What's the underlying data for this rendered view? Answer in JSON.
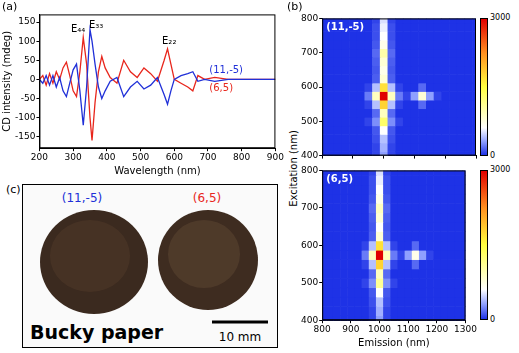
{
  "chart_data": [
    {
      "type": "line",
      "x_label": "Wavelength (nm)",
      "y_label": "CD intensity (mdeg)",
      "x": [
        200,
        210,
        220,
        230,
        240,
        250,
        260,
        270,
        280,
        290,
        300,
        310,
        320,
        330,
        340,
        350,
        356,
        365,
        375,
        385,
        395,
        410,
        430,
        450,
        470,
        490,
        510,
        530,
        550,
        570,
        580,
        590,
        600,
        620,
        640,
        655,
        670,
        690,
        720,
        760,
        800,
        850,
        900
      ],
      "series": [
        {
          "name": "(11,-5)",
          "color": "#2030d8",
          "values": [
            0,
            -10,
            10,
            -15,
            10,
            -20,
            5,
            -30,
            -45,
            -10,
            25,
            40,
            -30,
            -120,
            -20,
            130,
            100,
            40,
            -20,
            -50,
            -30,
            -5,
            5,
            -45,
            -20,
            -5,
            -25,
            -15,
            5,
            -40,
            -65,
            -30,
            0,
            10,
            15,
            20,
            -5,
            0,
            -5,
            0,
            0,
            0,
            0
          ]
        },
        {
          "name": "(6,5)",
          "color": "#e8261c",
          "values": [
            0,
            10,
            -15,
            15,
            -10,
            20,
            0,
            30,
            45,
            10,
            -30,
            -45,
            20,
            110,
            40,
            -100,
            -160,
            -60,
            20,
            60,
            30,
            5,
            -10,
            50,
            20,
            5,
            30,
            15,
            -5,
            50,
            80,
            40,
            0,
            -10,
            -20,
            -30,
            10,
            0,
            5,
            0,
            0,
            0,
            0
          ]
        }
      ],
      "annotations": [
        {
          "text": "E₄₄",
          "x": 315,
          "y": 130
        },
        {
          "text": "E₃₃",
          "x": 368,
          "y": 142
        },
        {
          "text": "E₂₂",
          "x": 585,
          "y": 100
        }
      ],
      "xlim": [
        200,
        900
      ],
      "xticks": [
        200,
        300,
        400,
        500,
        600,
        700,
        800,
        900
      ],
      "ylim": [
        -180,
        170
      ],
      "yticks": [
        -150,
        -100,
        -50,
        0,
        50,
        100,
        150
      ],
      "grid": false
    },
    {
      "type": "heatmap",
      "title": "(11,-5)",
      "x": [
        800,
        825,
        850,
        875,
        900,
        925,
        950,
        975,
        1000,
        1025,
        1050,
        1075,
        1100,
        1125,
        1150,
        1175,
        1200,
        1225,
        1250,
        1275,
        1300
      ],
      "y": [
        400,
        425,
        450,
        475,
        500,
        525,
        550,
        575,
        600,
        625,
        650,
        675,
        700,
        725,
        750,
        775,
        800
      ],
      "z": [
        [
          0,
          0,
          0,
          0,
          0,
          0,
          0,
          50,
          300,
          50,
          0,
          0,
          0,
          0,
          0,
          0,
          0,
          0,
          0,
          0,
          0
        ],
        [
          0,
          0,
          0,
          0,
          0,
          0,
          0,
          50,
          350,
          50,
          0,
          0,
          0,
          0,
          0,
          0,
          0,
          0,
          0,
          0,
          0
        ],
        [
          0,
          0,
          0,
          0,
          0,
          0,
          0,
          80,
          400,
          80,
          0,
          0,
          0,
          0,
          0,
          0,
          0,
          0,
          0,
          0,
          0
        ],
        [
          0,
          0,
          0,
          0,
          0,
          0,
          0,
          100,
          600,
          100,
          0,
          0,
          0,
          0,
          0,
          0,
          0,
          0,
          0,
          0,
          0
        ],
        [
          0,
          0,
          0,
          0,
          0,
          0,
          50,
          250,
          1300,
          250,
          50,
          0,
          0,
          0,
          0,
          0,
          0,
          0,
          0,
          0,
          0
        ],
        [
          0,
          0,
          0,
          0,
          0,
          0,
          0,
          150,
          900,
          150,
          0,
          0,
          0,
          0,
          0,
          0,
          0,
          0,
          0,
          0,
          0
        ],
        [
          0,
          0,
          0,
          0,
          0,
          0,
          50,
          400,
          1800,
          400,
          50,
          0,
          0,
          150,
          0,
          0,
          0,
          0,
          0,
          0,
          0
        ],
        [
          0,
          0,
          0,
          0,
          0,
          0,
          200,
          900,
          3000,
          900,
          200,
          50,
          300,
          800,
          300,
          50,
          0,
          0,
          0,
          0,
          0
        ],
        [
          0,
          0,
          0,
          0,
          0,
          0,
          50,
          400,
          1700,
          400,
          50,
          0,
          0,
          150,
          0,
          0,
          0,
          0,
          0,
          0,
          0
        ],
        [
          0,
          0,
          0,
          0,
          0,
          0,
          0,
          120,
          800,
          120,
          0,
          0,
          0,
          0,
          0,
          0,
          0,
          0,
          0,
          0,
          0
        ],
        [
          0,
          0,
          0,
          0,
          0,
          0,
          0,
          100,
          700,
          100,
          0,
          0,
          0,
          0,
          0,
          0,
          0,
          0,
          0,
          0,
          0
        ],
        [
          0,
          0,
          0,
          0,
          0,
          0,
          0,
          120,
          800,
          120,
          0,
          0,
          0,
          0,
          0,
          0,
          0,
          0,
          0,
          0,
          0
        ],
        [
          0,
          0,
          0,
          0,
          0,
          0,
          0,
          150,
          1000,
          150,
          0,
          0,
          0,
          0,
          0,
          0,
          0,
          0,
          0,
          0,
          0
        ],
        [
          0,
          0,
          0,
          0,
          0,
          0,
          0,
          100,
          700,
          100,
          0,
          0,
          0,
          0,
          0,
          0,
          0,
          0,
          0,
          0,
          0
        ],
        [
          0,
          0,
          0,
          0,
          0,
          0,
          0,
          80,
          600,
          80,
          0,
          0,
          0,
          0,
          0,
          0,
          0,
          0,
          0,
          0,
          0
        ],
        [
          0,
          0,
          0,
          0,
          0,
          0,
          0,
          80,
          550,
          80,
          0,
          0,
          0,
          0,
          0,
          0,
          0,
          0,
          0,
          0,
          0
        ],
        [
          0,
          0,
          0,
          0,
          0,
          0,
          0,
          50,
          500,
          50,
          0,
          0,
          0,
          0,
          0,
          0,
          0,
          0,
          0,
          0,
          0
        ]
      ],
      "xlim": [
        800,
        1300
      ],
      "xticks": [
        800,
        900,
        1000,
        1100,
        1200,
        1300
      ],
      "ylim": [
        400,
        800
      ],
      "yticks": [
        400,
        500,
        600,
        700,
        800
      ],
      "colorbar": {
        "range": [
          0,
          3000
        ],
        "ticks": [
          0,
          3000
        ]
      },
      "tick_labels": "y"
    },
    {
      "type": "heatmap",
      "title": "(6,5)",
      "x_label": "Emission (nm)",
      "y_label": "Excitation (nm)",
      "x": [
        800,
        825,
        850,
        875,
        900,
        925,
        950,
        975,
        1000,
        1025,
        1050,
        1075,
        1100,
        1125,
        1150,
        1175,
        1200,
        1225,
        1250,
        1275,
        1300
      ],
      "y": [
        400,
        425,
        450,
        475,
        500,
        525,
        550,
        575,
        600,
        625,
        650,
        675,
        700,
        725,
        750,
        775,
        800
      ],
      "z": [
        [
          0,
          0,
          0,
          0,
          0,
          0,
          0,
          50,
          300,
          50,
          0,
          0,
          0,
          0,
          0,
          0,
          0,
          0,
          0,
          0,
          0
        ],
        [
          0,
          0,
          0,
          0,
          0,
          0,
          0,
          50,
          350,
          50,
          0,
          0,
          0,
          0,
          0,
          0,
          0,
          0,
          0,
          0,
          0
        ],
        [
          0,
          0,
          0,
          0,
          0,
          0,
          0,
          80,
          400,
          80,
          0,
          0,
          0,
          0,
          0,
          0,
          0,
          0,
          0,
          0,
          0
        ],
        [
          0,
          0,
          0,
          0,
          0,
          0,
          0,
          100,
          600,
          100,
          0,
          0,
          0,
          0,
          0,
          0,
          0,
          0,
          0,
          0,
          0
        ],
        [
          0,
          0,
          0,
          0,
          0,
          0,
          50,
          250,
          1100,
          250,
          50,
          0,
          0,
          0,
          0,
          0,
          0,
          0,
          0,
          0,
          0
        ],
        [
          0,
          0,
          0,
          0,
          0,
          0,
          0,
          150,
          900,
          150,
          0,
          0,
          0,
          0,
          0,
          0,
          0,
          0,
          0,
          0,
          0
        ],
        [
          0,
          0,
          0,
          0,
          0,
          0,
          50,
          400,
          1800,
          400,
          50,
          0,
          0,
          150,
          0,
          0,
          0,
          0,
          0,
          0,
          0
        ],
        [
          0,
          0,
          0,
          0,
          0,
          0,
          200,
          900,
          3000,
          900,
          200,
          50,
          300,
          700,
          300,
          50,
          0,
          0,
          0,
          0,
          0
        ],
        [
          0,
          0,
          0,
          0,
          0,
          0,
          50,
          400,
          1700,
          400,
          50,
          0,
          0,
          150,
          0,
          0,
          0,
          0,
          0,
          0,
          0
        ],
        [
          0,
          0,
          0,
          0,
          0,
          0,
          0,
          120,
          800,
          120,
          0,
          0,
          0,
          0,
          0,
          0,
          0,
          0,
          0,
          0,
          0
        ],
        [
          0,
          0,
          0,
          0,
          0,
          0,
          0,
          100,
          600,
          100,
          0,
          0,
          0,
          0,
          0,
          0,
          0,
          0,
          0,
          0,
          0
        ],
        [
          0,
          0,
          0,
          0,
          0,
          0,
          0,
          120,
          800,
          120,
          0,
          0,
          0,
          0,
          0,
          0,
          0,
          0,
          0,
          0,
          0
        ],
        [
          0,
          0,
          0,
          0,
          0,
          0,
          0,
          150,
          900,
          150,
          0,
          0,
          0,
          0,
          0,
          0,
          0,
          0,
          0,
          0,
          0
        ],
        [
          0,
          0,
          0,
          0,
          0,
          0,
          0,
          100,
          700,
          100,
          0,
          0,
          0,
          0,
          0,
          0,
          0,
          0,
          0,
          0,
          0
        ],
        [
          0,
          0,
          0,
          0,
          0,
          0,
          0,
          80,
          600,
          80,
          0,
          0,
          0,
          0,
          0,
          0,
          0,
          0,
          0,
          0,
          0
        ],
        [
          0,
          0,
          0,
          0,
          0,
          0,
          0,
          80,
          550,
          80,
          0,
          0,
          0,
          0,
          0,
          0,
          0,
          0,
          0,
          0,
          0
        ],
        [
          0,
          0,
          0,
          0,
          0,
          0,
          0,
          50,
          500,
          50,
          0,
          0,
          0,
          0,
          0,
          0,
          0,
          0,
          0,
          0,
          0
        ]
      ],
      "xlim": [
        800,
        1300
      ],
      "xticks": [
        800,
        900,
        1000,
        1100,
        1200,
        1300
      ],
      "ylim": [
        400,
        800
      ],
      "yticks": [
        400,
        500,
        600,
        700,
        800
      ],
      "colorbar": {
        "range": [
          0,
          3000
        ],
        "ticks": [
          0,
          3000
        ]
      }
    }
  ],
  "figure": {
    "panel_labels": [
      "(a)",
      "(b)",
      "(c)"
    ],
    "photo": {
      "labels": [
        "(11,-5)",
        "(6,5)"
      ],
      "label_colors": [
        "#2030d8",
        "#e8261c"
      ],
      "caption": "Bucky paper",
      "scale_bar": "10 mm"
    }
  }
}
